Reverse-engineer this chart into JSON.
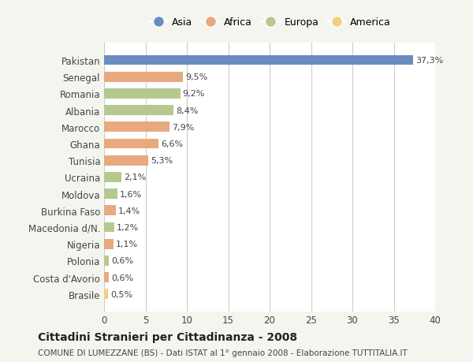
{
  "countries": [
    "Pakistan",
    "Senegal",
    "Romania",
    "Albania",
    "Marocco",
    "Ghana",
    "Tunisia",
    "Ucraina",
    "Moldova",
    "Burkina Faso",
    "Macedonia d/N.",
    "Nigeria",
    "Polonia",
    "Costa d'Avorio",
    "Brasile"
  ],
  "values": [
    37.3,
    9.5,
    9.2,
    8.4,
    7.9,
    6.6,
    5.3,
    2.1,
    1.6,
    1.4,
    1.2,
    1.1,
    0.6,
    0.6,
    0.5
  ],
  "labels": [
    "37,3%",
    "9,5%",
    "9,2%",
    "8,4%",
    "7,9%",
    "6,6%",
    "5,3%",
    "2,1%",
    "1,6%",
    "1,4%",
    "1,2%",
    "1,1%",
    "0,6%",
    "0,6%",
    "0,5%"
  ],
  "continents": [
    "Asia",
    "Africa",
    "Europa",
    "Europa",
    "Africa",
    "Africa",
    "Africa",
    "Europa",
    "Europa",
    "Africa",
    "Europa",
    "Africa",
    "Europa",
    "Africa",
    "America"
  ],
  "colors": {
    "Asia": "#6b8cbf",
    "Africa": "#e8a97e",
    "Europa": "#b5c98e",
    "America": "#f0d080"
  },
  "legend_order": [
    "Asia",
    "Africa",
    "Europa",
    "America"
  ],
  "title": "Cittadini Stranieri per Cittadinanza - 2008",
  "subtitle": "COMUNE DI LUMEZZANE (BS) - Dati ISTAT al 1° gennaio 2008 - Elaborazione TUTTITALIA.IT",
  "xlim": [
    0,
    40
  ],
  "xticks": [
    0,
    5,
    10,
    15,
    20,
    25,
    30,
    35,
    40
  ],
  "background_color": "#f5f5f0",
  "plot_background": "#ffffff",
  "grid_color": "#cccccc"
}
